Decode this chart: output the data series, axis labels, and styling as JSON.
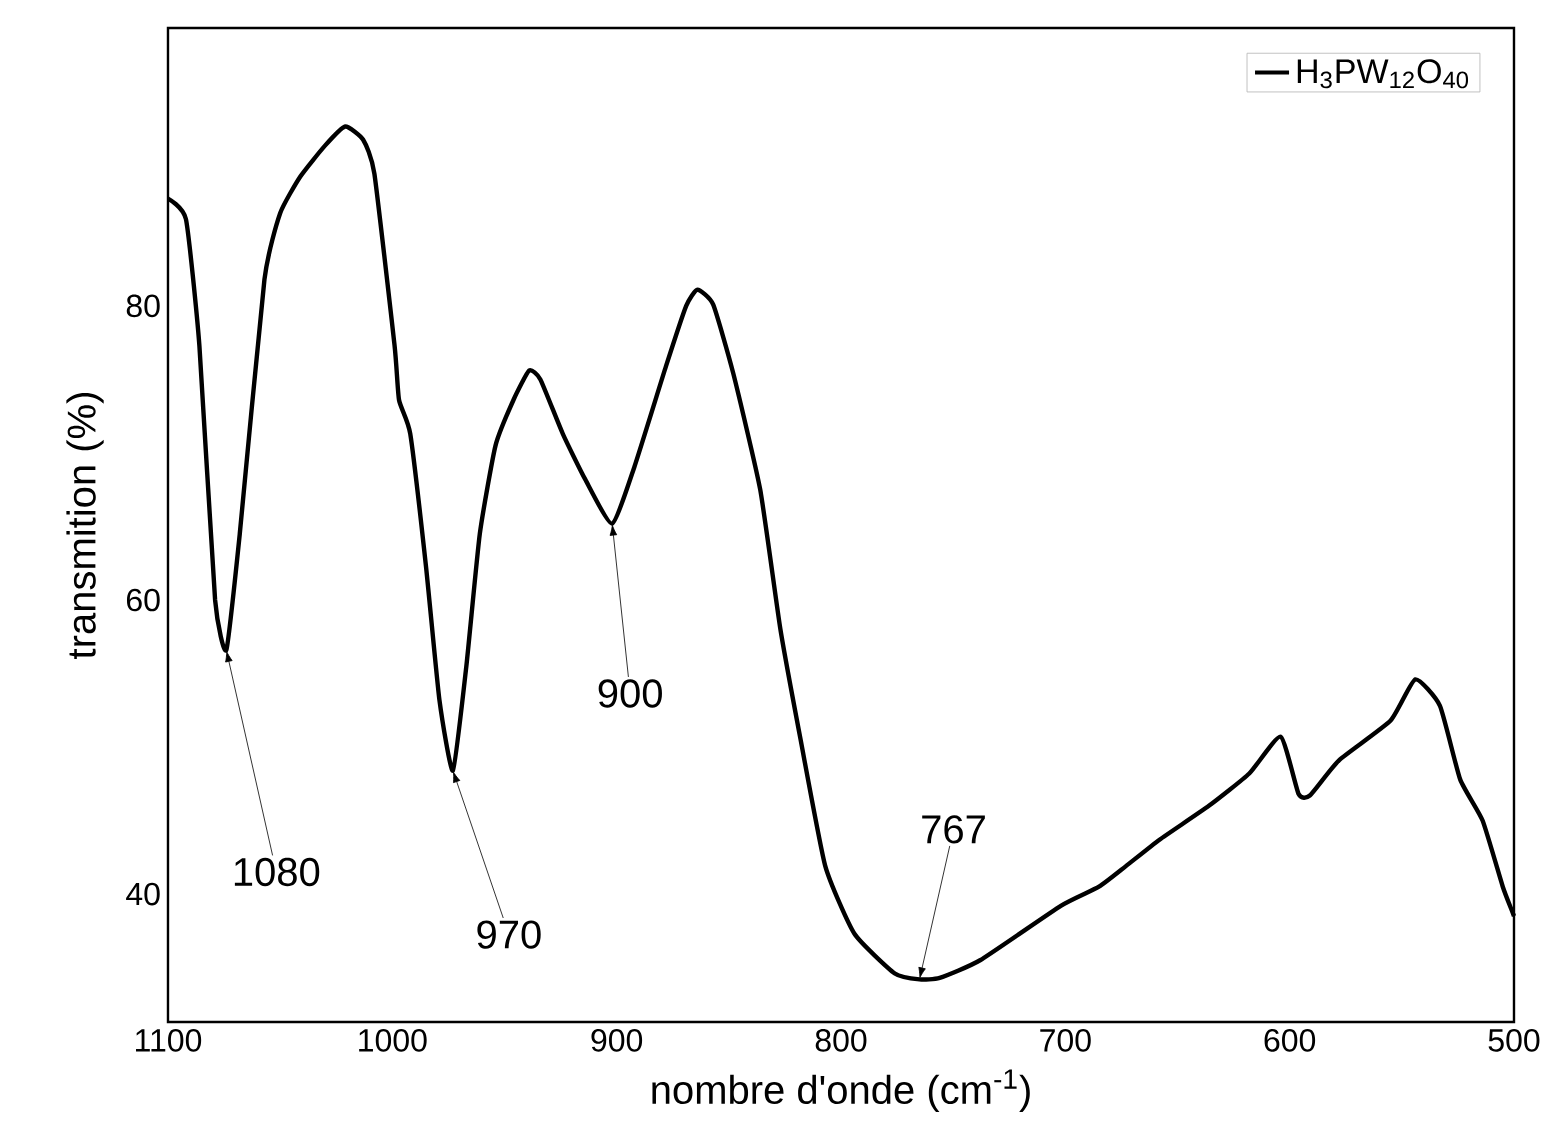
{
  "chart_data": {
    "type": "line",
    "xlabel": "nombre d'onde (cm$^{-1}$)",
    "ylabel": "transmition (%)",
    "xlim": [
      1100,
      500
    ],
    "ylim": [
      31.3,
      98.9
    ],
    "xticks": [
      1100,
      1000,
      900,
      800,
      700,
      600,
      500
    ],
    "yticks": [
      40,
      60,
      80
    ],
    "grid": false,
    "legend": "top right",
    "marker": "none",
    "line_style": "solid",
    "series": [
      {
        "name": "H$_{3}$PW$_{12}$O$_{40}$",
        "color": "#000000",
        "x": [
          1100,
          1092,
          1086,
          1079,
          1074,
          1068,
          1057,
          1050,
          1041,
          1030,
          1021,
          1013,
          1008,
          999,
          997,
          992,
          985,
          979,
          973,
          967,
          961,
          954,
          946,
          939,
          934,
          924,
          914,
          902,
          892,
          878,
          869,
          864,
          857,
          848,
          836,
          827,
          818,
          807,
          794,
          776,
          765,
          756,
          738,
          702,
          685,
          673,
          658,
          636,
          618,
          604,
          596,
          591,
          578,
          555,
          544,
          533,
          524,
          514,
          505,
          501,
          500
        ],
        "values": [
          87.3,
          85.9,
          77.3,
          60.0,
          56.6,
          64.5,
          81.8,
          86.3,
          88.8,
          90.9,
          92.2,
          91.3,
          89.0,
          77.3,
          73.6,
          71.3,
          62.3,
          53.2,
          48.4,
          55.5,
          64.5,
          70.5,
          73.6,
          75.6,
          75.0,
          71.3,
          68.2,
          65.2,
          69.1,
          75.9,
          80.0,
          81.1,
          80.1,
          75.4,
          67.5,
          58.0,
          50.5,
          41.9,
          37.3,
          34.6,
          34.2,
          34.3,
          35.5,
          39.2,
          40.5,
          41.9,
          43.7,
          46.0,
          48.2,
          50.7,
          46.8,
          46.7,
          49.1,
          51.8,
          54.6,
          52.8,
          47.8,
          45.0,
          40.5,
          38.9,
          38.5
        ]
      }
    ],
    "annotations": [
      {
        "text": "1080",
        "x": 1074,
        "y": 56.6
      },
      {
        "text": "970",
        "x": 973,
        "y": 48.4
      },
      {
        "text": "900",
        "x": 902,
        "y": 65.2
      },
      {
        "text": "767",
        "x": 765,
        "y": 34.2
      }
    ]
  }
}
